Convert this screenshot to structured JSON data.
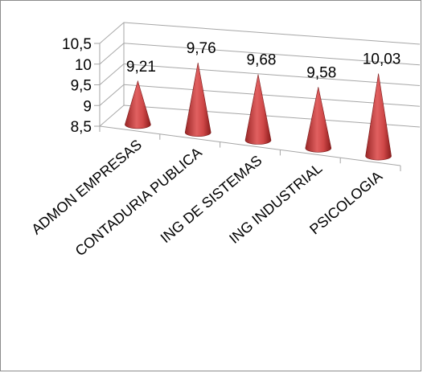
{
  "chart_data": {
    "type": "bar",
    "bar_shape": "cone-3d",
    "categories": [
      "ADMON EMPRESAS",
      "CONTADURIA PUBLICA",
      "ING DE SISTEMAS",
      "ING INDUSTRIAL",
      "PSICOLOGIA"
    ],
    "values": [
      9.21,
      9.76,
      9.68,
      9.58,
      10.03
    ],
    "value_labels": [
      "9,21",
      "9,76",
      "9,68",
      "9,58",
      "10,03"
    ],
    "ylim": [
      8.5,
      10.5
    ],
    "y_ticks": [
      8.5,
      9,
      9.5,
      10,
      10.5
    ],
    "y_tick_labels": [
      "8,5",
      "9",
      "9,5",
      "10",
      "10,5"
    ],
    "title": "",
    "xlabel": "",
    "ylabel": "",
    "grid": true,
    "legend": "none",
    "colors": {
      "cone_dark": "#8c1f1f",
      "cone_mid": "#d94c4c",
      "cone_light": "#f4a0a0",
      "axis": "#a6a6a6",
      "grid": "#a6a6a6",
      "border": "#8c8c8c"
    }
  }
}
